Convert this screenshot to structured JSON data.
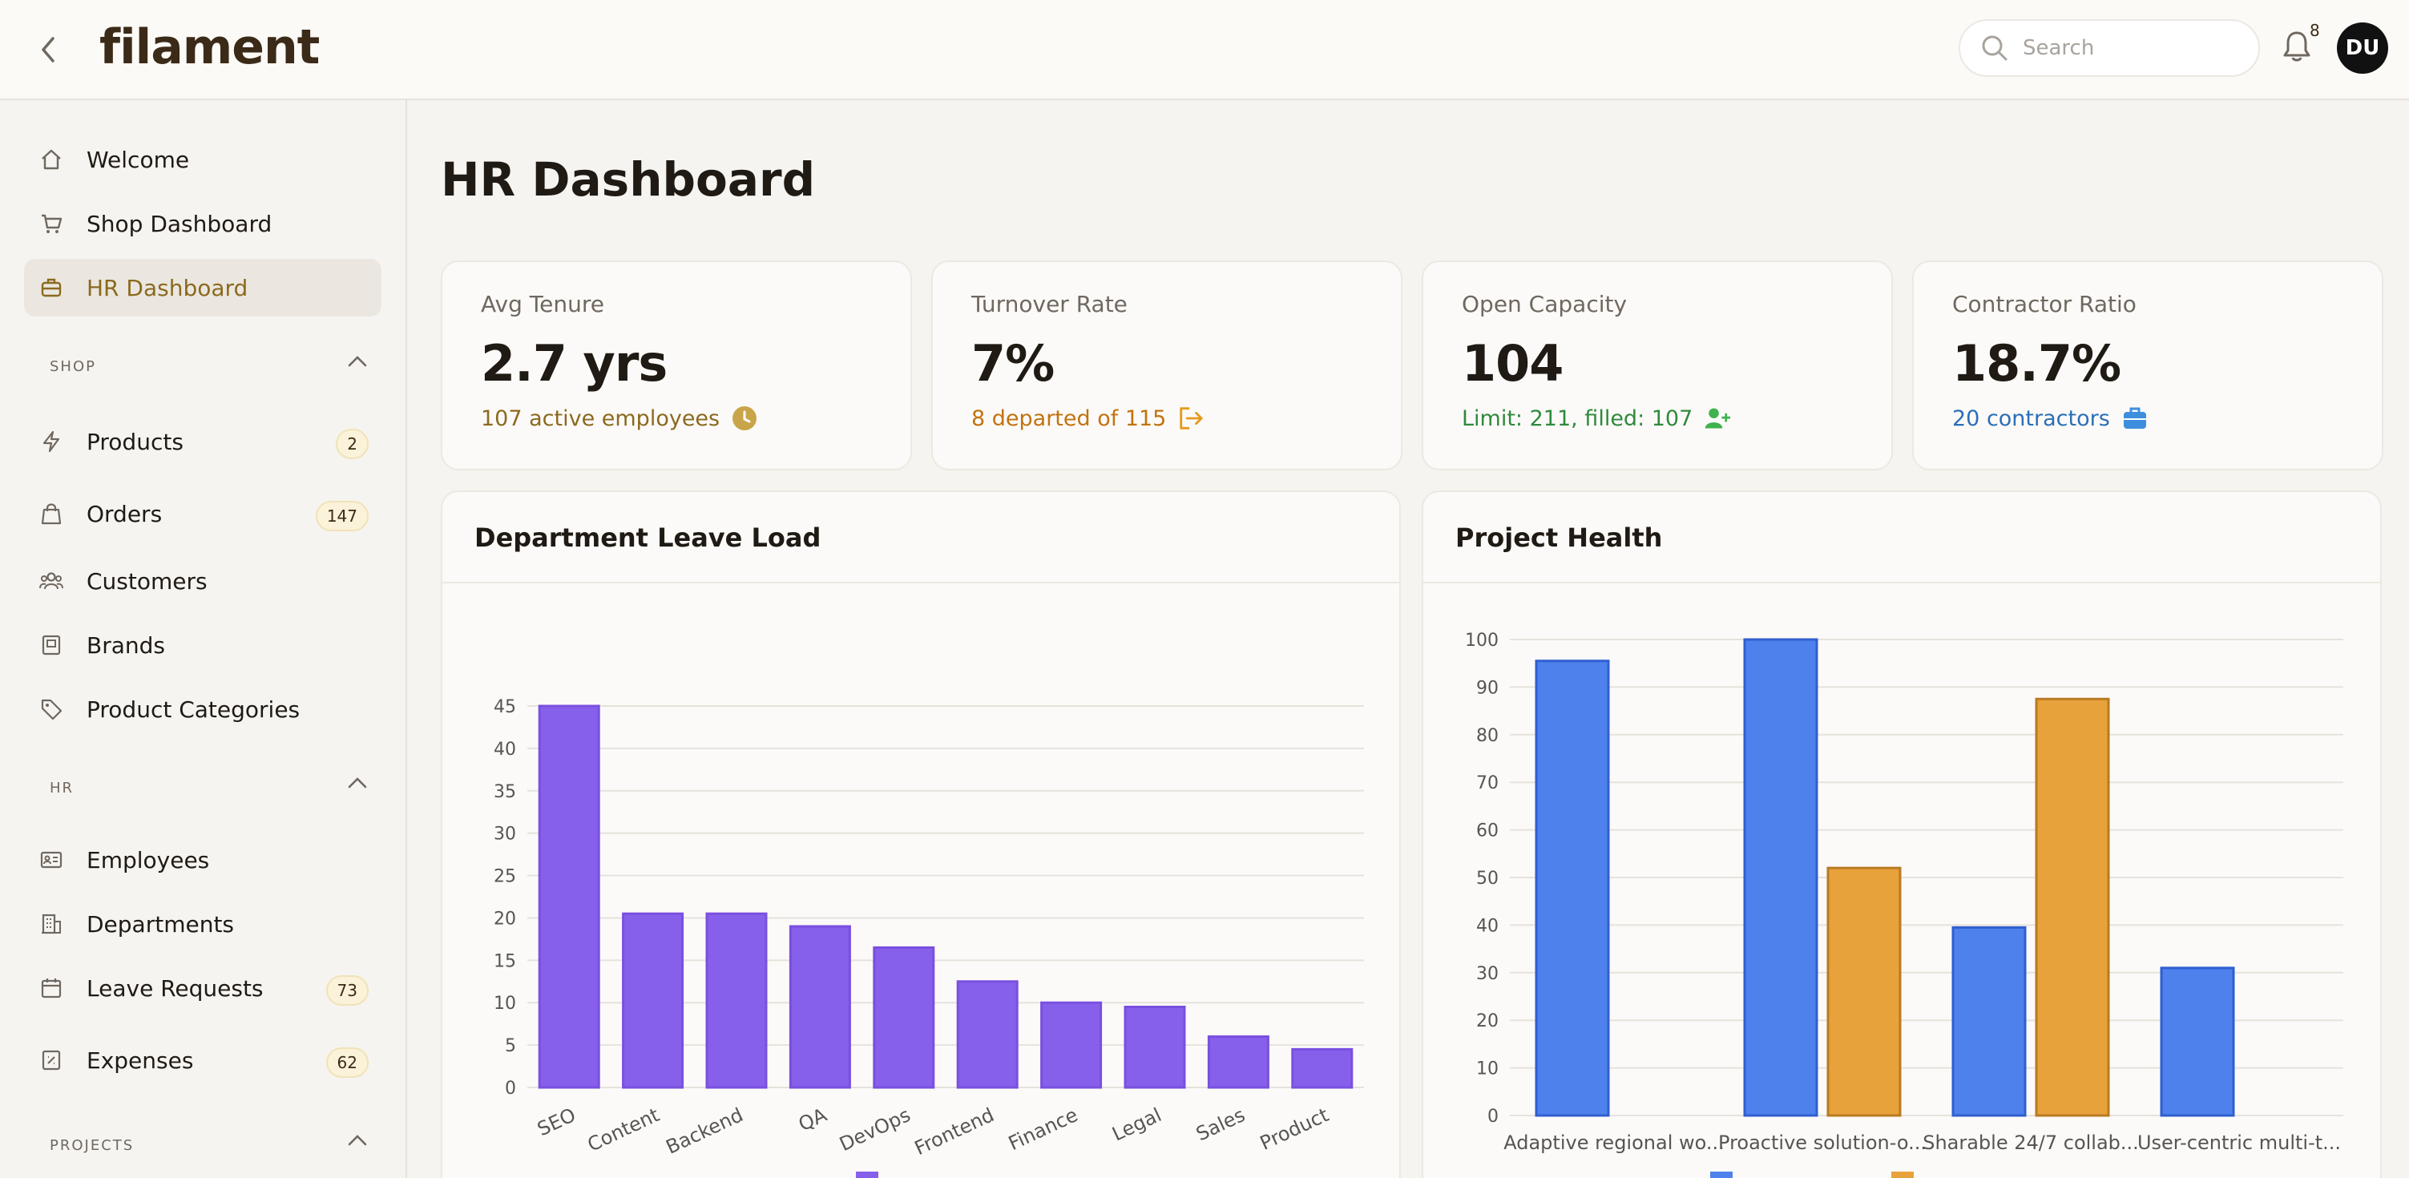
{
  "header": {
    "logo_text": "filament",
    "search_placeholder": "Search",
    "notifications_count": "8",
    "avatar_initials": "DU"
  },
  "sidebar": {
    "top_items": [
      {
        "label": "Welcome",
        "icon": "home-icon"
      },
      {
        "label": "Shop Dashboard",
        "icon": "cart-icon"
      },
      {
        "label": "HR Dashboard",
        "icon": "briefcase-icon",
        "active": true
      }
    ],
    "groups": [
      {
        "label": "SHOP",
        "items": [
          {
            "label": "Products",
            "icon": "bolt-icon",
            "badge": "2"
          },
          {
            "label": "Orders",
            "icon": "shopping-bag-icon",
            "badge": "147"
          },
          {
            "label": "Customers",
            "icon": "users-icon"
          },
          {
            "label": "Brands",
            "icon": "book-icon"
          },
          {
            "label": "Product Categories",
            "icon": "tag-icon"
          }
        ]
      },
      {
        "label": "HR",
        "items": [
          {
            "label": "Employees",
            "icon": "id-card-icon"
          },
          {
            "label": "Departments",
            "icon": "building-icon"
          },
          {
            "label": "Leave Requests",
            "icon": "calendar-icon",
            "badge": "73"
          },
          {
            "label": "Expenses",
            "icon": "receipt-icon",
            "badge": "62"
          }
        ]
      },
      {
        "label": "PROJECTS",
        "items": []
      }
    ]
  },
  "main": {
    "title": "HR Dashboard",
    "stats": [
      {
        "label": "Avg Tenure",
        "value": "2.7 yrs",
        "description": "107 active employees",
        "icon": "clock-icon",
        "color": "#8b6a1f"
      },
      {
        "label": "Turnover Rate",
        "value": "7%",
        "description": "8 departed of 115",
        "icon": "logout-icon",
        "color": "#c2730f"
      },
      {
        "label": "Open Capacity",
        "value": "104",
        "description": "Limit: 211, filled: 107",
        "icon": "user-plus-icon",
        "color": "#2f8a3c"
      },
      {
        "label": "Contractor Ratio",
        "value": "18.7%",
        "description": "20 contractors",
        "icon": "briefcase-icon",
        "color": "#2a6fb8"
      }
    ]
  },
  "chart_data": [
    {
      "type": "bar",
      "title": "Department Leave Load",
      "categories": [
        "SEO",
        "Content",
        "Backend",
        "QA",
        "DevOps",
        "Frontend",
        "Finance",
        "Legal",
        "Sales",
        "Product"
      ],
      "series": [
        {
          "values": [
            45,
            20.5,
            20.5,
            19,
            16.5,
            12.5,
            10,
            9.5,
            6,
            4.5
          ],
          "color": "#8660ea"
        }
      ],
      "ylim": [
        0,
        45
      ],
      "yticks": [
        0,
        5,
        10,
        15,
        20,
        25,
        30,
        35,
        40,
        45
      ],
      "grid": true,
      "legend": "bottom"
    },
    {
      "type": "bar",
      "title": "Project Health",
      "categories": [
        "Adaptive regional wo...",
        "Proactive solution-o...",
        "Sharable 24/7 collab...",
        "User-centric multi-t..."
      ],
      "series": [
        {
          "values": [
            95.5,
            100,
            39.5,
            31
          ],
          "color": "#4f81ec"
        },
        {
          "values": [
            0,
            52,
            87.5,
            0
          ],
          "color": "#e8a23b"
        }
      ],
      "ylim": [
        0,
        100
      ],
      "yticks": [
        0,
        10,
        20,
        30,
        40,
        50,
        60,
        70,
        80,
        90,
        100
      ],
      "grid": true,
      "legend": "bottom"
    }
  ]
}
